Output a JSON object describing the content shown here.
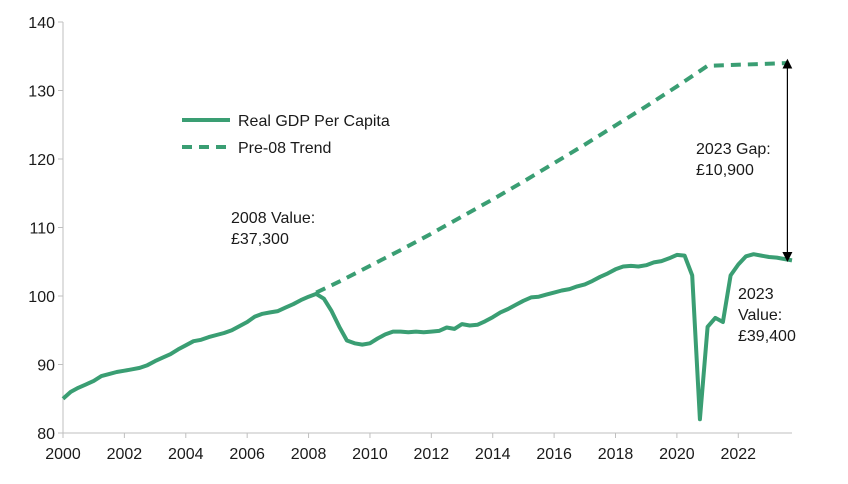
{
  "chart_data": {
    "type": "line",
    "title": "",
    "xlabel": "",
    "ylabel": "",
    "xlim": [
      2000,
      2023.75
    ],
    "ylim": [
      80,
      140
    ],
    "x_ticks": [
      "2000",
      "2002",
      "2004",
      "2006",
      "2008",
      "2010",
      "2012",
      "2014",
      "2016",
      "2018",
      "2020",
      "2022"
    ],
    "y_ticks": [
      "80",
      "90",
      "100",
      "110",
      "120",
      "130",
      "140"
    ],
    "grid": false,
    "legend_position": "upper-left",
    "series": [
      {
        "name": "Real GDP Per Capita",
        "style": "solid",
        "color": "#3a9e73",
        "points": [
          [
            2000.0,
            85.0
          ],
          [
            2000.25,
            86.0
          ],
          [
            2000.5,
            86.6
          ],
          [
            2000.75,
            87.1
          ],
          [
            2001.0,
            87.6
          ],
          [
            2001.25,
            88.3
          ],
          [
            2001.5,
            88.6
          ],
          [
            2001.75,
            88.9
          ],
          [
            2002.0,
            89.1
          ],
          [
            2002.25,
            89.3
          ],
          [
            2002.5,
            89.5
          ],
          [
            2002.75,
            89.9
          ],
          [
            2003.0,
            90.5
          ],
          [
            2003.25,
            91.0
          ],
          [
            2003.5,
            91.5
          ],
          [
            2003.75,
            92.2
          ],
          [
            2004.0,
            92.8
          ],
          [
            2004.25,
            93.4
          ],
          [
            2004.5,
            93.6
          ],
          [
            2004.75,
            94.0
          ],
          [
            2005.0,
            94.3
          ],
          [
            2005.25,
            94.6
          ],
          [
            2005.5,
            95.0
          ],
          [
            2005.75,
            95.6
          ],
          [
            2006.0,
            96.2
          ],
          [
            2006.25,
            97.0
          ],
          [
            2006.5,
            97.4
          ],
          [
            2006.75,
            97.6
          ],
          [
            2007.0,
            97.8
          ],
          [
            2007.25,
            98.3
          ],
          [
            2007.5,
            98.8
          ],
          [
            2007.75,
            99.4
          ],
          [
            2008.0,
            99.9
          ],
          [
            2008.25,
            100.3
          ],
          [
            2008.5,
            99.6
          ],
          [
            2008.75,
            97.8
          ],
          [
            2009.0,
            95.5
          ],
          [
            2009.25,
            93.5
          ],
          [
            2009.5,
            93.1
          ],
          [
            2009.75,
            92.9
          ],
          [
            2010.0,
            93.1
          ],
          [
            2010.25,
            93.8
          ],
          [
            2010.5,
            94.4
          ],
          [
            2010.75,
            94.8
          ],
          [
            2011.0,
            94.8
          ],
          [
            2011.25,
            94.7
          ],
          [
            2011.5,
            94.8
          ],
          [
            2011.75,
            94.7
          ],
          [
            2012.0,
            94.8
          ],
          [
            2012.25,
            94.9
          ],
          [
            2012.5,
            95.4
          ],
          [
            2012.75,
            95.2
          ],
          [
            2013.0,
            95.9
          ],
          [
            2013.25,
            95.7
          ],
          [
            2013.5,
            95.8
          ],
          [
            2013.75,
            96.3
          ],
          [
            2014.0,
            96.9
          ],
          [
            2014.25,
            97.6
          ],
          [
            2014.5,
            98.1
          ],
          [
            2014.75,
            98.7
          ],
          [
            2015.0,
            99.3
          ],
          [
            2015.25,
            99.8
          ],
          [
            2015.5,
            99.9
          ],
          [
            2015.75,
            100.2
          ],
          [
            2016.0,
            100.5
          ],
          [
            2016.25,
            100.8
          ],
          [
            2016.5,
            101.0
          ],
          [
            2016.75,
            101.4
          ],
          [
            2017.0,
            101.7
          ],
          [
            2017.25,
            102.2
          ],
          [
            2017.5,
            102.8
          ],
          [
            2017.75,
            103.3
          ],
          [
            2018.0,
            103.9
          ],
          [
            2018.25,
            104.3
          ],
          [
            2018.5,
            104.4
          ],
          [
            2018.75,
            104.3
          ],
          [
            2019.0,
            104.5
          ],
          [
            2019.25,
            104.9
          ],
          [
            2019.5,
            105.1
          ],
          [
            2019.75,
            105.5
          ],
          [
            2020.0,
            106.0
          ],
          [
            2020.25,
            105.9
          ],
          [
            2020.5,
            103.0
          ],
          [
            2020.75,
            82.0
          ],
          [
            2021.0,
            95.5
          ],
          [
            2021.25,
            96.8
          ],
          [
            2021.5,
            96.2
          ],
          [
            2021.75,
            103.0
          ],
          [
            2022.0,
            104.6
          ],
          [
            2022.25,
            105.8
          ],
          [
            2022.5,
            106.1
          ],
          [
            2022.75,
            105.9
          ],
          [
            2023.0,
            105.7
          ],
          [
            2023.25,
            105.6
          ],
          [
            2023.5,
            105.4
          ],
          [
            2023.75,
            105.2
          ]
        ]
      },
      {
        "name": "Pre-08 Trend",
        "style": "dashed",
        "color": "#3a9e73",
        "points": [
          [
            2008.25,
            100.5
          ],
          [
            2009.0,
            102.1
          ],
          [
            2010.0,
            104.4
          ],
          [
            2011.0,
            106.7
          ],
          [
            2012.0,
            109.1
          ],
          [
            2013.0,
            111.6
          ],
          [
            2014.0,
            114.1
          ],
          [
            2015.0,
            116.7
          ],
          [
            2016.0,
            119.4
          ],
          [
            2017.0,
            122.1
          ],
          [
            2018.0,
            124.9
          ],
          [
            2019.0,
            127.7
          ],
          [
            2020.0,
            130.6
          ],
          [
            2021.0,
            133.6
          ],
          [
            2023.6,
            134.0
          ]
        ]
      }
    ],
    "annotations": [
      {
        "id": "value-2008",
        "lines": [
          "2008 Value:",
          "£37,300"
        ]
      },
      {
        "id": "gap-2023",
        "lines": [
          "2023 Gap:",
          "£10,900"
        ]
      },
      {
        "id": "value-2023",
        "lines": [
          "2023",
          "Value:",
          "£39,400"
        ]
      }
    ],
    "gap_arrow": {
      "x": 2023.6,
      "from": 105.4,
      "to": 134.2
    }
  }
}
